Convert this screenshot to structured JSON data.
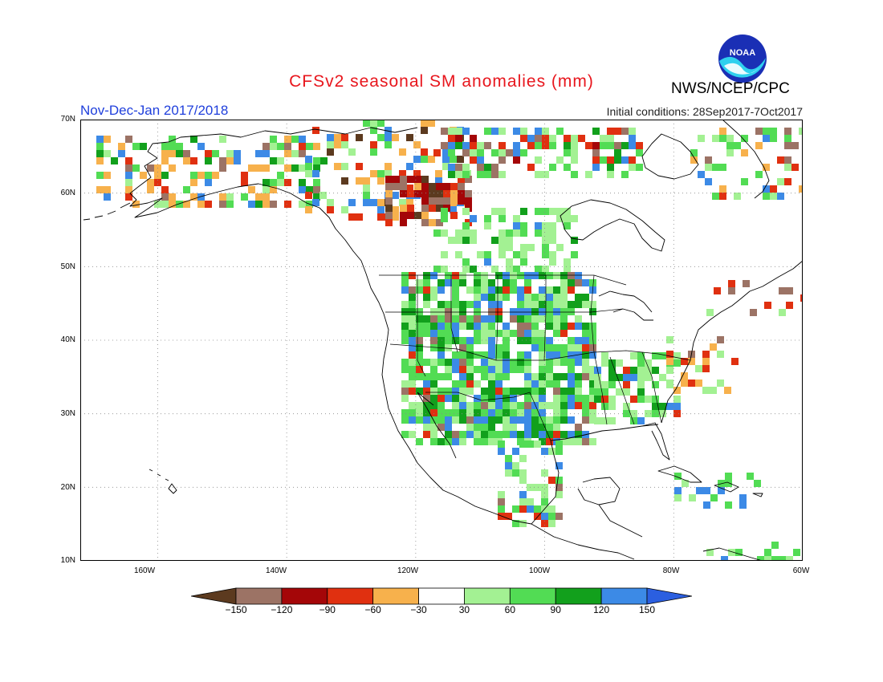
{
  "title": "CFSv2 seasonal SM anomalies (mm)",
  "organization": "NWS/NCEP/CPC",
  "logo_text": "NOAA",
  "season": "Nov-Dec-Jan 2017/2018",
  "initial_conditions": "Initial conditions: 28Sep2017-7Oct2017",
  "map": {
    "lon_range": [
      -172,
      -60
    ],
    "lat_range": [
      10,
      70
    ],
    "lat_labels": [
      "70N",
      "60N",
      "50N",
      "40N",
      "30N",
      "20N",
      "10N"
    ],
    "lon_labels": [
      "160W",
      "140W",
      "120W",
      "100W",
      "80W",
      "60W"
    ],
    "grid": "dotted"
  },
  "colorbar": {
    "tick_labels": [
      "-150",
      "-120",
      "-90",
      "-60",
      "-30",
      "30",
      "60",
      "90",
      "120",
      "150"
    ],
    "colors": [
      "#5c3a1f",
      "#9c7365",
      "#a40608",
      "#e03010",
      "#f7b14c",
      "#ffffff",
      "#a3f193",
      "#52dc54",
      "#12a01c",
      "#3c8ae6",
      "#2b5fe0"
    ]
  },
  "anomaly_colors": {
    "dark_brown": "#5c3a1f",
    "brown": "#9c7365",
    "dark_red": "#a40608",
    "red": "#e03010",
    "orange": "#f7b14c",
    "light_green": "#a3f193",
    "green": "#52dc54",
    "dark_green": "#12a01c",
    "blue": "#3c8ae6"
  }
}
